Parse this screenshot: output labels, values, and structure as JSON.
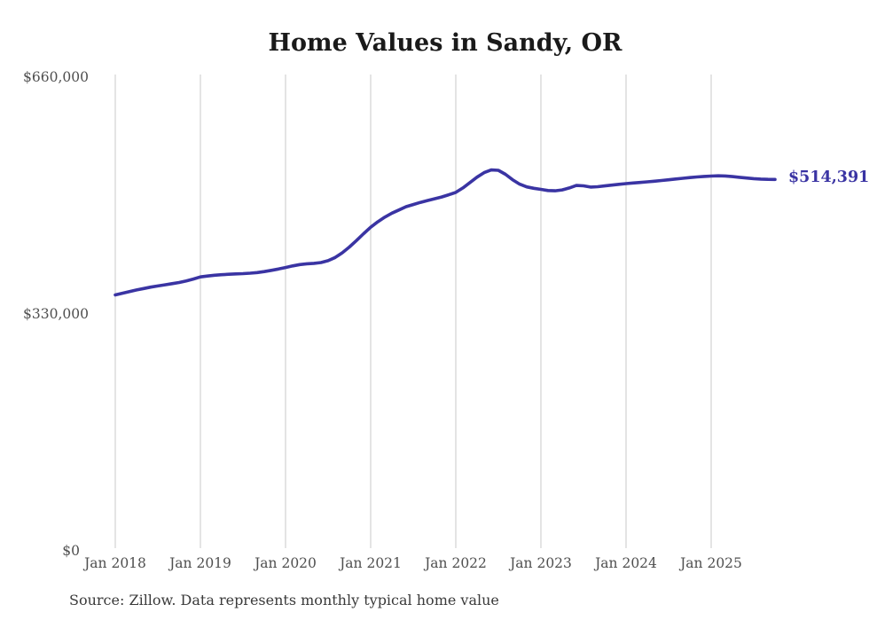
{
  "title": "Home Values in Sandy, OR",
  "source_note": "Source: Zillow. Data represents monthly typical home value",
  "colors": {
    "accent": "#3a34a3",
    "grid": "#c9c9c9",
    "axis_text": "#4f4f4f",
    "title_text": "#1a1a1a",
    "source_text": "#3a3a3a",
    "background": "#ffffff"
  },
  "chart_data": {
    "type": "line",
    "title": "Home Values in Sandy, OR",
    "xlabel": "",
    "ylabel": "",
    "ylim": [
      0,
      660000
    ],
    "grid": "vertical-only",
    "legend": "none",
    "y_tick_labels": [
      "$0",
      "$330,000",
      "$660,000"
    ],
    "y_tick_values": [
      0,
      330000,
      660000
    ],
    "x_tick_labels": [
      "Jan 2018",
      "Jan 2019",
      "Jan 2020",
      "Jan 2021",
      "Jan 2022",
      "Jan 2023",
      "Jan 2024",
      "Jan 2025"
    ],
    "x_tick_month_indices": [
      0,
      12,
      24,
      36,
      48,
      60,
      72,
      84
    ],
    "x_start_month": "Jan 2018",
    "x_end_month": "Oct 2025",
    "x_interval": "month",
    "last_value": 514391,
    "last_value_label": "$514,391",
    "series": [
      {
        "name": "Typical home value",
        "values": [
          354000,
          356400,
          358700,
          360900,
          362900,
          364800,
          366500,
          368100,
          369600,
          371300,
          373500,
          376100,
          379000,
          380300,
          381300,
          382100,
          382700,
          383200,
          383600,
          384200,
          385100,
          386400,
          388100,
          390000,
          392000,
          394300,
          396100,
          397200,
          397800,
          398900,
          401500,
          406000,
          412500,
          420500,
          429500,
          439000,
          448000,
          455500,
          462000,
          467500,
          472000,
          476500,
          479500,
          482500,
          485000,
          487500,
          490000,
          493000,
          496300,
          502500,
          510000,
          517500,
          523800,
          527500,
          527000,
          521500,
          514000,
          507800,
          504000,
          502000,
          500500,
          499000,
          498600,
          499800,
          502500,
          506000,
          505500,
          503800,
          504200,
          505300,
          506500,
          507600,
          508600,
          509400,
          510200,
          511000,
          511900,
          512800,
          513800,
          514900,
          515900,
          516900,
          517800,
          518500,
          519000,
          519400,
          519100,
          518300,
          517300,
          516300,
          515400,
          514800,
          514500,
          514391
        ]
      }
    ]
  }
}
